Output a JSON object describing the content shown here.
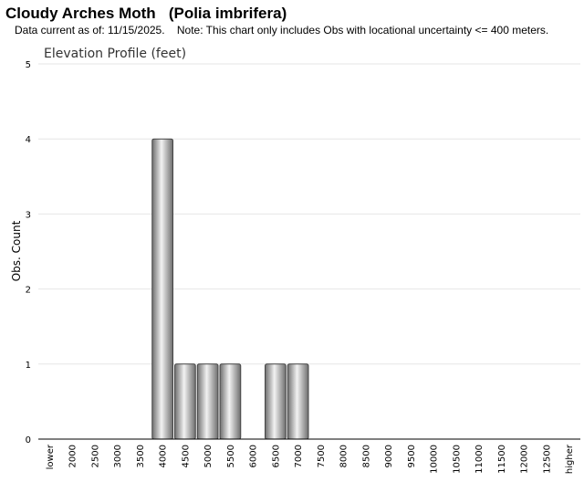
{
  "header": {
    "title": "Cloudy Arches Moth   (Polia imbrifera)",
    "note": "Data current as of: 11/15/2025.    Note: This chart only includes Obs with locational uncertainty <= 400 meters."
  },
  "chart_data": {
    "type": "bar",
    "title": "Elevation Profile (feet)",
    "xlabel": "",
    "ylabel": "Obs. Count",
    "ylim": [
      0,
      5
    ],
    "yticks": [
      0,
      1,
      2,
      3,
      4,
      5
    ],
    "grid": true,
    "categories": [
      "lower",
      "2000",
      "2500",
      "3000",
      "3500",
      "4000",
      "4500",
      "5000",
      "5500",
      "6000",
      "6500",
      "7000",
      "7500",
      "8000",
      "8500",
      "9000",
      "9500",
      "10000",
      "10500",
      "11000",
      "11500",
      "12000",
      "12500",
      "higher"
    ],
    "values": [
      0,
      0,
      0,
      0,
      0,
      4,
      1,
      1,
      1,
      0,
      1,
      1,
      0,
      0,
      0,
      0,
      0,
      0,
      0,
      0,
      0,
      0,
      0,
      0
    ],
    "colors": {
      "bar_dark": "#6e6e6e",
      "bar_light": "#f2f2f2",
      "grid": "#e6e6e6",
      "axis": "#000000"
    }
  }
}
